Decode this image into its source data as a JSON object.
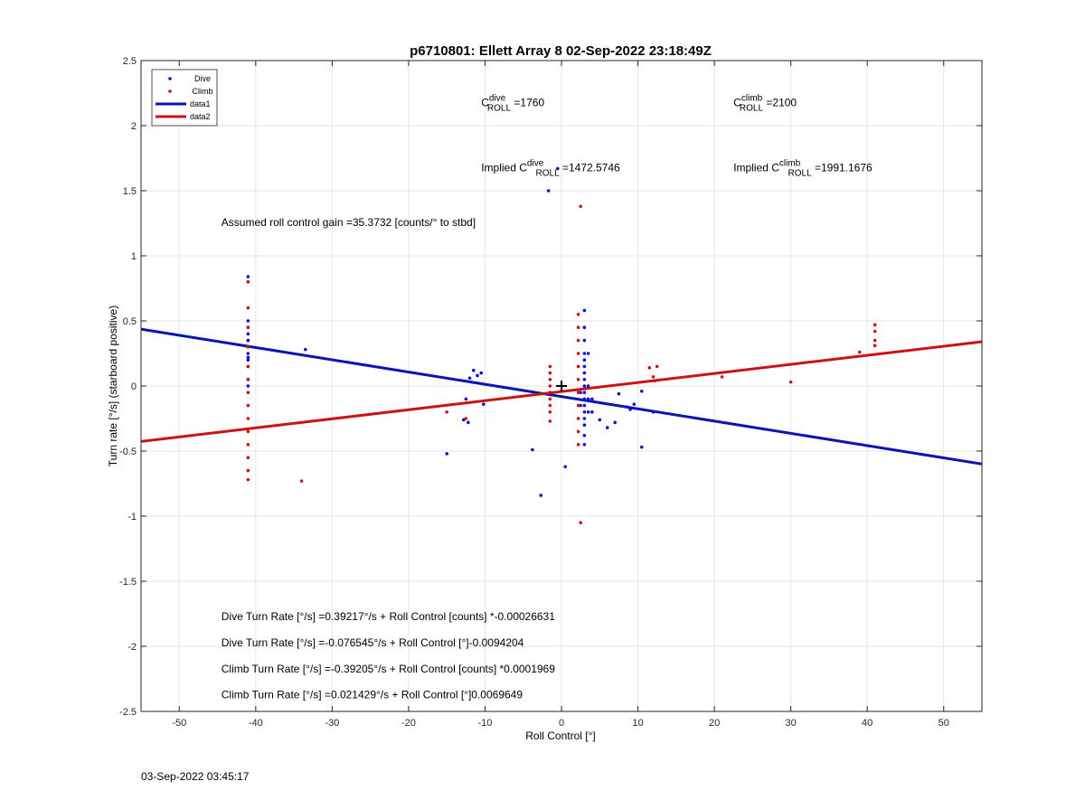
{
  "chart_data": {
    "type": "scatter",
    "title": "p6710801: Ellett Array 8 02-Sep-2022 23:18:49Z",
    "xlabel": "Roll Control [°]",
    "ylabel": "Turn rate [°/s] (starboard positive)",
    "xlim": [
      -55,
      55
    ],
    "ylim": [
      -2.5,
      2.5
    ],
    "xticks": [
      -50,
      -40,
      -30,
      -20,
      -10,
      0,
      10,
      20,
      30,
      40,
      50
    ],
    "yticks": [
      -2.5,
      -2,
      -1.5,
      -1,
      -0.5,
      0,
      0.5,
      1,
      1.5,
      2,
      2.5
    ],
    "grid": true,
    "legend_position": "top-left",
    "legend": [
      {
        "label": "Dive",
        "kind": "dot",
        "color": "#1010d0"
      },
      {
        "label": "Climb",
        "kind": "dot",
        "color": "#d01010"
      },
      {
        "label": "data1",
        "kind": "line",
        "color": "#0a14b4"
      },
      {
        "label": "data2",
        "kind": "line",
        "color": "#c81414"
      }
    ],
    "series": [
      {
        "name": "Dive",
        "kind": "scatter",
        "color": "#1010d0",
        "points": [
          [
            -41,
            0.84
          ],
          [
            -41,
            0.8
          ],
          [
            -41,
            0.5
          ],
          [
            -41,
            0.45
          ],
          [
            -41,
            0.4
          ],
          [
            -41,
            0.35
          ],
          [
            -41,
            0.3
          ],
          [
            -41,
            0.25
          ],
          [
            -41,
            0.2
          ],
          [
            -41,
            0.15
          ],
          [
            -41,
            0.05
          ],
          [
            -41,
            0.0
          ],
          [
            -41,
            0.35
          ],
          [
            -41,
            0.22
          ],
          [
            -33.5,
            0.28
          ],
          [
            -11.5,
            0.12
          ],
          [
            -11.0,
            0.08
          ],
          [
            -10.5,
            0.1
          ],
          [
            -12.0,
            0.06
          ],
          [
            -12.5,
            -0.1
          ],
          [
            -12.2,
            -0.28
          ],
          [
            -12.8,
            -0.26
          ],
          [
            -10.2,
            -0.14
          ],
          [
            -15.0,
            -0.52
          ],
          [
            -3.8,
            -0.49
          ],
          [
            -2.7,
            -0.84
          ],
          [
            -1.7,
            1.5
          ],
          [
            -0.5,
            1.67
          ],
          [
            0.5,
            -0.62
          ],
          [
            3,
            0.58
          ],
          [
            3,
            0.45
          ],
          [
            3,
            0.35
          ],
          [
            3,
            0.25
          ],
          [
            3,
            0.2
          ],
          [
            3,
            0.15
          ],
          [
            3,
            0.1
          ],
          [
            3,
            0.05
          ],
          [
            3,
            0.0
          ],
          [
            3,
            -0.05
          ],
          [
            3,
            -0.1
          ],
          [
            3,
            -0.15
          ],
          [
            3,
            -0.2
          ],
          [
            3,
            -0.25
          ],
          [
            3,
            -0.3
          ],
          [
            3,
            -0.38
          ],
          [
            3,
            -0.45
          ],
          [
            3.5,
            0.25
          ],
          [
            3.5,
            0.0
          ],
          [
            3.5,
            -0.1
          ],
          [
            3.5,
            -0.2
          ],
          [
            4.0,
            -0.1
          ],
          [
            4.0,
            -0.2
          ],
          [
            2.5,
            -0.15
          ],
          [
            2.5,
            -0.05
          ],
          [
            5,
            -0.26
          ],
          [
            6,
            -0.32
          ],
          [
            7,
            -0.28
          ],
          [
            7.5,
            -0.06
          ],
          [
            8.5,
            -0.16
          ],
          [
            9,
            -0.18
          ],
          [
            9.5,
            -0.14
          ],
          [
            10.5,
            -0.04
          ],
          [
            10.5,
            -0.47
          ],
          [
            12,
            -0.2
          ]
        ]
      },
      {
        "name": "Climb",
        "kind": "scatter",
        "color": "#d01010",
        "points": [
          [
            -41,
            0.8
          ],
          [
            -41,
            0.6
          ],
          [
            -41,
            0.45
          ],
          [
            -41,
            0.3
          ],
          [
            -41,
            0.15
          ],
          [
            -41,
            0.05
          ],
          [
            -41,
            -0.05
          ],
          [
            -41,
            -0.15
          ],
          [
            -41,
            -0.25
          ],
          [
            -41,
            -0.35
          ],
          [
            -41,
            -0.45
          ],
          [
            -41,
            -0.55
          ],
          [
            -41,
            -0.65
          ],
          [
            -41,
            -0.72
          ],
          [
            -34,
            -0.73
          ],
          [
            -15,
            -0.2
          ],
          [
            -12.5,
            -0.25
          ],
          [
            -1.5,
            0.15
          ],
          [
            -1.5,
            0.1
          ],
          [
            -1.5,
            0.05
          ],
          [
            -1.5,
            0.0
          ],
          [
            -1.5,
            -0.05
          ],
          [
            -1.5,
            -0.1
          ],
          [
            -1.5,
            -0.15
          ],
          [
            -1.5,
            -0.2
          ],
          [
            -1.5,
            -0.27
          ],
          [
            2.5,
            1.38
          ],
          [
            2.5,
            -1.05
          ],
          [
            2.2,
            0.55
          ],
          [
            2.2,
            0.45
          ],
          [
            2.2,
            0.35
          ],
          [
            2.2,
            0.25
          ],
          [
            2.2,
            0.15
          ],
          [
            2.2,
            0.05
          ],
          [
            2.2,
            -0.05
          ],
          [
            2.2,
            -0.15
          ],
          [
            2.2,
            -0.25
          ],
          [
            2.2,
            -0.35
          ],
          [
            2.2,
            -0.45
          ],
          [
            11.5,
            0.14
          ],
          [
            12,
            0.07
          ],
          [
            12.5,
            0.15
          ],
          [
            12.2,
            0.04
          ],
          [
            21,
            0.07
          ],
          [
            30,
            0.03
          ],
          [
            39,
            0.26
          ],
          [
            41,
            0.47
          ],
          [
            41,
            0.42
          ],
          [
            41,
            0.35
          ],
          [
            41,
            0.31
          ]
        ]
      },
      {
        "name": "data1",
        "kind": "line",
        "color": "#0a14b4",
        "x": [
          -55,
          55
        ],
        "y": [
          0.4369,
          -0.5993
        ]
      },
      {
        "name": "data2",
        "kind": "line",
        "color": "#c81414",
        "x": [
          -55,
          55
        ],
        "y": [
          -0.4262,
          0.34
        ]
      }
    ],
    "marker": {
      "x": 0,
      "y": 0,
      "symbol": "+"
    },
    "annotations": [
      {
        "id": "c-dive",
        "prefix": "C",
        "sup": "dive",
        "sub": "ROLL",
        "suffix": " =1760",
        "x": -10.5,
        "y": 2.15
      },
      {
        "id": "c-climb",
        "prefix": "C",
        "sup": "climb",
        "sub": "ROLL",
        "suffix": " =2100",
        "x": 22.5,
        "y": 2.15
      },
      {
        "id": "implied-dive",
        "prefix": "Implied C",
        "sup": "dive",
        "sub": "ROLL",
        "suffix": " =1472.5746",
        "x": -10.5,
        "y": 1.65
      },
      {
        "id": "implied-climb",
        "prefix": "Implied C",
        "sup": "climb",
        "sub": "ROLL",
        "suffix": " =1991.1676",
        "x": 22.5,
        "y": 1.65
      },
      {
        "id": "gain",
        "text": "Assumed roll control gain =35.3732 [counts/° to stbd]",
        "x": -44.5,
        "y": 1.23
      },
      {
        "id": "eq1",
        "text": "Dive Turn Rate [°/s] =0.39217°/s + Roll Control [counts] *-0.00026631",
        "x": -44.5,
        "y": -1.8
      },
      {
        "id": "eq2",
        "text": "Dive Turn Rate [°/s] =-0.076545°/s + Roll Control [°]-0.0094204",
        "x": -44.5,
        "y": -2.0
      },
      {
        "id": "eq3",
        "text": "Climb Turn Rate [°/s] =-0.39205°/s + Roll Control [counts] *0.0001969",
        "x": -44.5,
        "y": -2.2
      },
      {
        "id": "eq4",
        "text": "Climb Turn Rate [°/s] =0.021429°/s + Roll Control [°]0.0069649",
        "x": -44.5,
        "y": -2.4
      }
    ]
  },
  "footer": {
    "timestamp": "03-Sep-2022 03:45:17"
  }
}
